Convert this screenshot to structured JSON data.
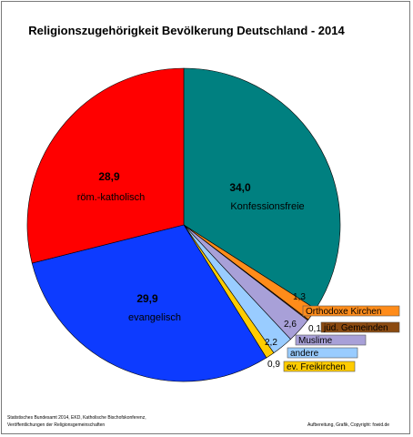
{
  "chart_data": {
    "type": "pie",
    "title": "Religionszugehörigkeit Bevölkerung Deutschland - 2014",
    "slices": [
      {
        "label": "Konfessionsfreie",
        "value": 34.0,
        "value_text": "34,0",
        "color": "#008080"
      },
      {
        "label": "Orthodoxe Kirchen",
        "value": 1.3,
        "value_text": "1,3",
        "color": "#ff8c1a"
      },
      {
        "label": "jüd. Gemeinden",
        "value": 0.1,
        "value_text": "0,1",
        "color": "#8b4a10"
      },
      {
        "label": "Muslime",
        "value": 2.6,
        "value_text": "2,6",
        "color": "#a8a0d8"
      },
      {
        "label": "andere",
        "value": 2.2,
        "value_text": "2,2",
        "color": "#99ccff"
      },
      {
        "label": "ev. Freikirchen",
        "value": 0.9,
        "value_text": "0,9",
        "color": "#ffcc00"
      },
      {
        "label": "evangelisch",
        "value": 29.9,
        "value_text": "29,9",
        "color": "#0d3bff"
      },
      {
        "label": "röm.-katholisch",
        "value": 28.9,
        "value_text": "28,9",
        "color": "#ff0000"
      }
    ]
  },
  "footer": {
    "source_line1": "Statistisches Bundesamt 2014, EKD, Katholische Bischofskonferenz,",
    "source_line2": "Veröffentlichungen der Religionsgemeinschaften",
    "credit": "Aufbereitung, Grafik, Copyright: fowid.de"
  }
}
